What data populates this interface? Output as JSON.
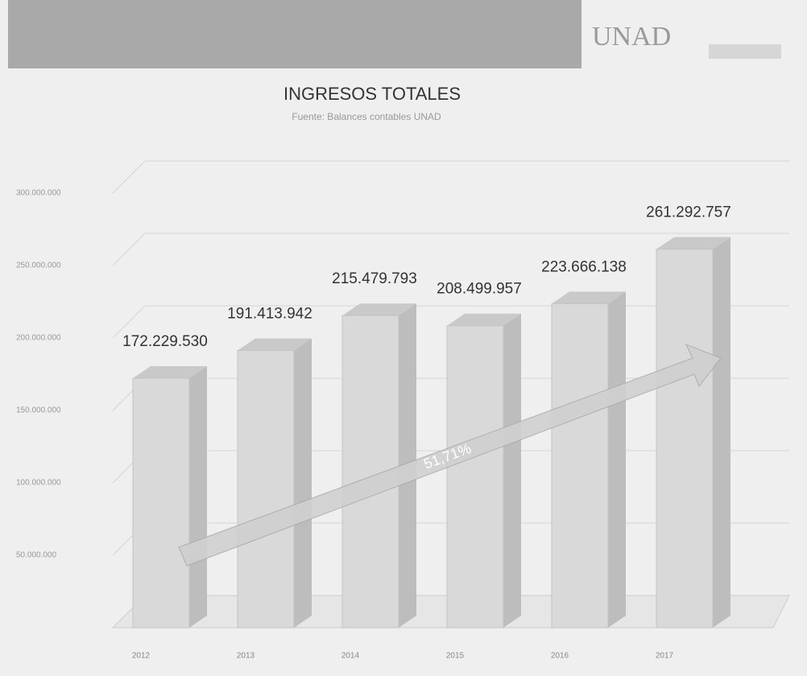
{
  "header": {
    "logo": "UNAD"
  },
  "chart_data": {
    "type": "bar3d",
    "title": "INGRESOS TOTALES",
    "subtitle": "Fuente: Balances contables UNAD",
    "categories": [
      "2012",
      "2013",
      "2014",
      "2015",
      "2016",
      "2017"
    ],
    "values": [
      172229530,
      191413942,
      215479793,
      208499957,
      223666138,
      261292757
    ],
    "value_labels": [
      "172.229.530",
      "191.413.942",
      "215.479.793",
      "208.499.957",
      "223.666.138",
      "261.292.757"
    ],
    "color": "#d9d9d9",
    "ylim": [
      0,
      300000000
    ],
    "yticks": [
      {
        "value": 50000000,
        "label": "50.000.000"
      },
      {
        "value": 100000000,
        "label": "100.000.000"
      },
      {
        "value": 150000000,
        "label": "150.000.000"
      },
      {
        "value": 200000000,
        "label": "200.000.000"
      },
      {
        "value": 250000000,
        "label": "250.000.000"
      },
      {
        "value": 300000000,
        "label": "300.000.000"
      }
    ],
    "grid": true,
    "annotation": "51,71%"
  }
}
